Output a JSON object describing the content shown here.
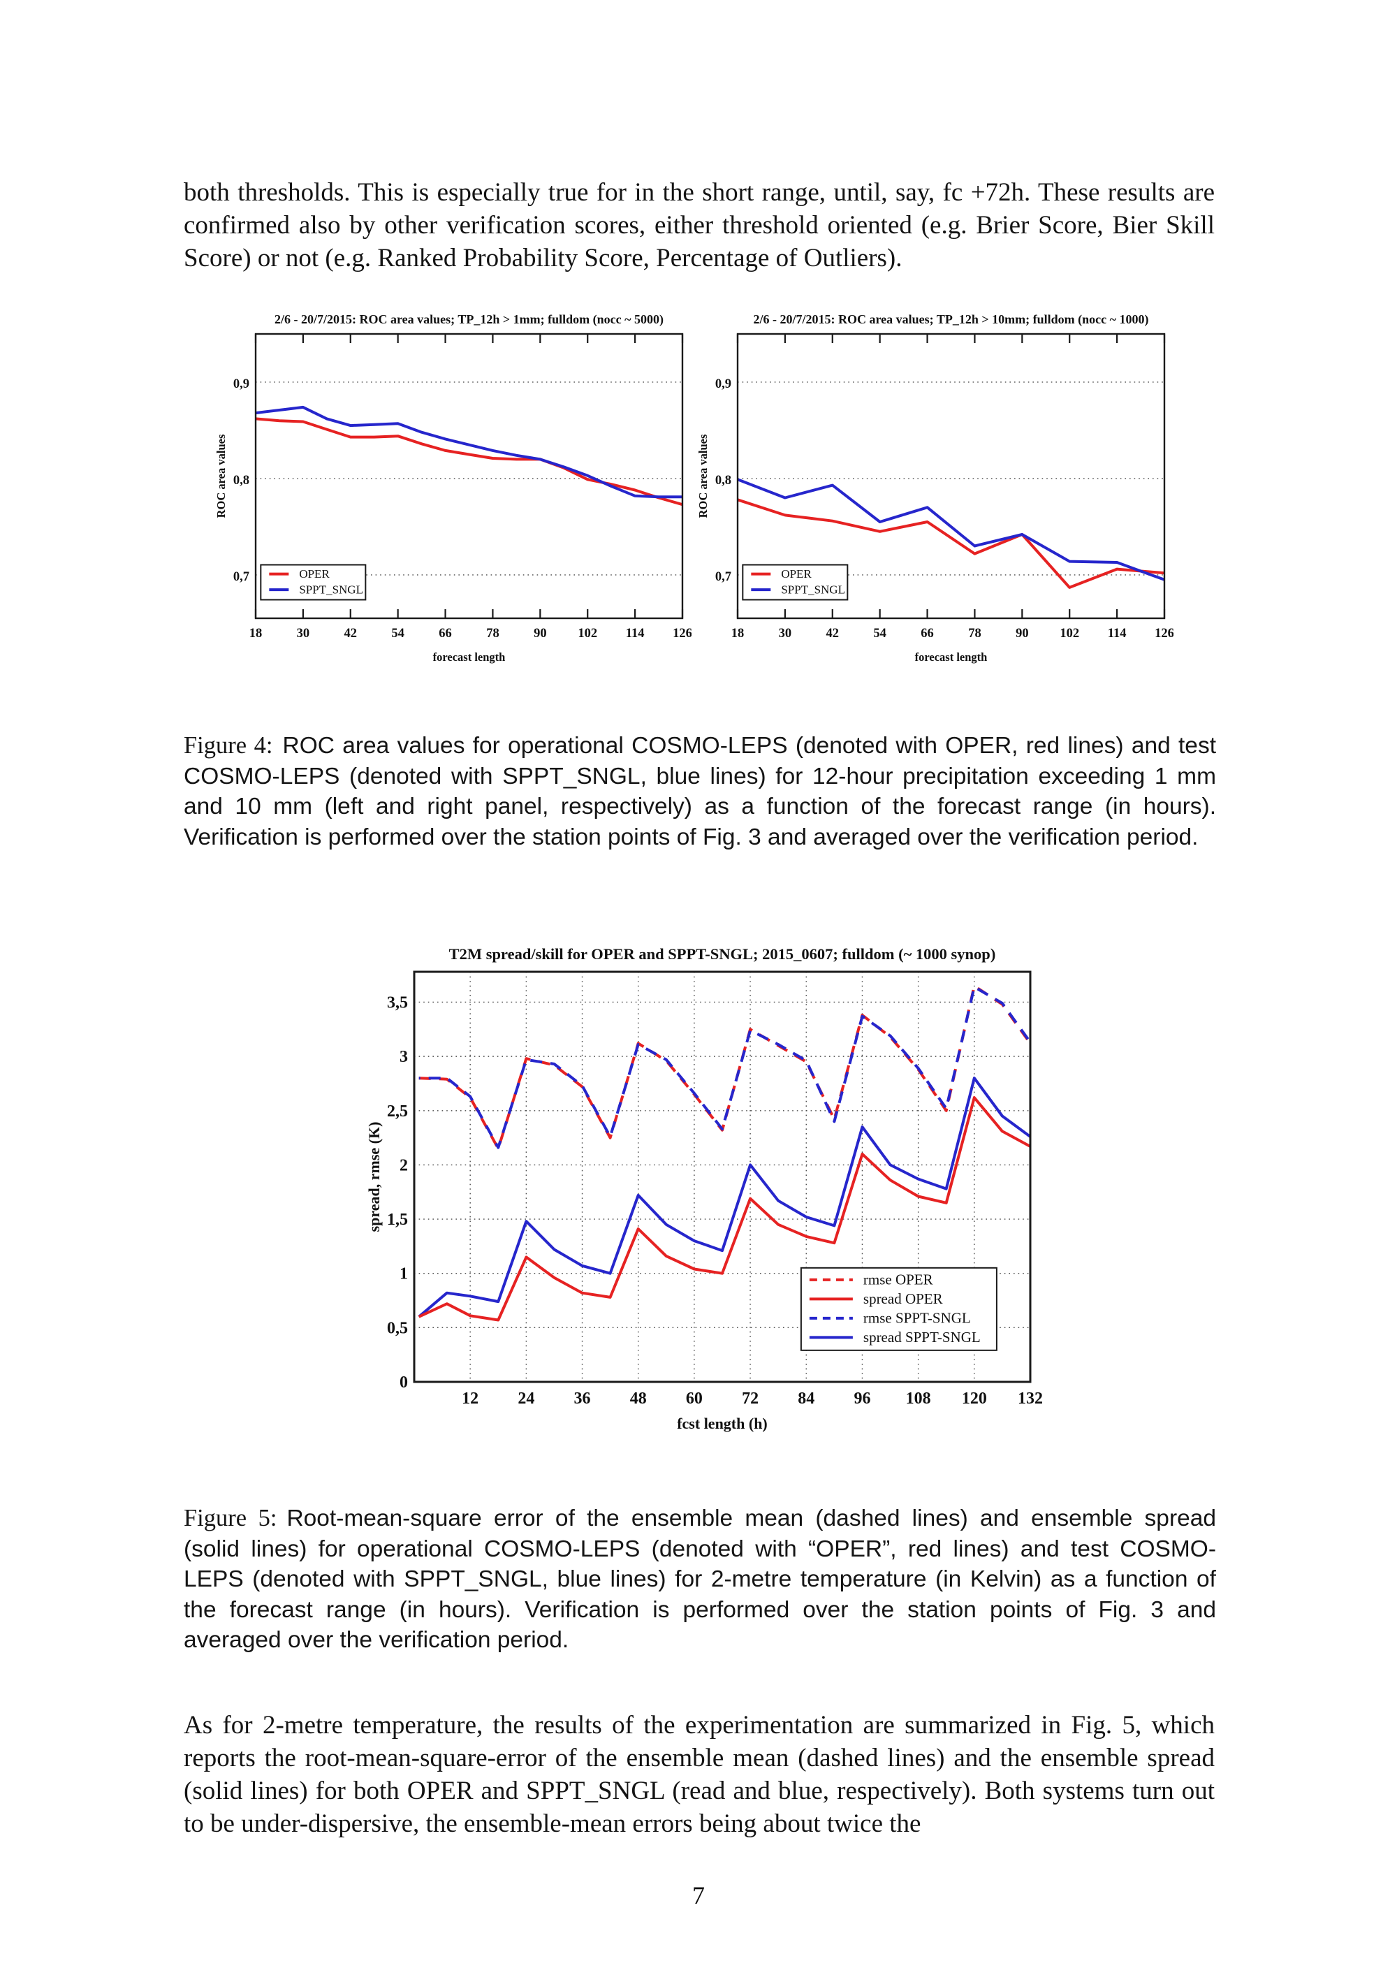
{
  "page": {
    "paragraph_top": "both thresholds.  This is especially true for in the short range, until, say, fc +72h.  These results are confirmed also by other verification scores, either threshold oriented (e.g. Brier Score, Bier Skill Score) or not (e.g. Ranked Probability Score, Percentage of Outliers).",
    "figure4": {
      "label": "Figure 4:",
      "caption": "ROC area values for operational COSMO-LEPS (denoted with OPER, red lines) and test COSMO-LEPS (denoted with SPPT_SNGL, blue lines) for 12-hour precipitation exceeding 1 mm and 10 mm (left and right panel, respectively) as a function of the forecast range (in hours).  Verification is performed over the station points of Fig.  3 and averaged over the verification period."
    },
    "figure5": {
      "label": "Figure 5:",
      "caption": "Root-mean-square error of the ensemble mean (dashed lines) and ensemble spread (solid lines) for operational COSMO-LEPS (denoted with “OPER”, red lines) and test COSMO-LEPS (denoted with SPPT_SNGL, blue lines) for 2-metre temperature (in Kelvin) as a function of the forecast range (in hours).  Verification is performed over the station points of Fig.  3 and averaged over the verification period."
    },
    "paragraph_bottom": "As for 2-metre temperature, the results of the experimentation are summarized in Fig.  5, which reports the root-mean-square-error of the ensemble mean (dashed lines) and the ensemble spread (solid lines) for both OPER and SPPT_SNGL (read and blue, respectively).  Both systems turn out to be under-dispersive, the ensemble-mean errors being about twice the",
    "page_number": "7"
  },
  "colors": {
    "oper_red": "#e62222",
    "sppt_blue": "#2626cc"
  },
  "chart_data": [
    {
      "type": "line",
      "title": "2/6 - 20/7/2015: ROC area values; TP_12h > 1mm; fulldom (nocc ~ 5000)",
      "xlabel": "forecast length",
      "ylabel": "ROC area values",
      "xlim": [
        18,
        126
      ],
      "ylim": [
        0.655,
        0.95
      ],
      "xticks": [
        18,
        30,
        42,
        54,
        66,
        78,
        90,
        102,
        114,
        126
      ],
      "xtick_labels": [
        "18",
        "30",
        "42",
        "54",
        "66",
        "78",
        "90",
        "102",
        "114",
        "126"
      ],
      "ytick_vals": [
        0.7,
        0.8,
        0.9
      ],
      "ytick_labels": [
        "0,7",
        "0,8",
        "0,9"
      ],
      "grid": "h",
      "ticks": "x",
      "legend_pos": "bottom-left",
      "legend": [
        {
          "label": "OPER",
          "color": "#e62222",
          "dash": "solid"
        },
        {
          "label": "SPPT_SNGL",
          "color": "#2626cc",
          "dash": "solid"
        }
      ],
      "series": [
        {
          "name": "OPER",
          "color": "#e62222",
          "dash": "solid",
          "x": [
            18,
            24,
            30,
            36,
            42,
            48,
            54,
            60,
            66,
            72,
            78,
            84,
            90,
            96,
            102,
            108,
            114,
            120,
            126
          ],
          "y": [
            0.862,
            0.86,
            0.859,
            0.851,
            0.843,
            0.843,
            0.844,
            0.836,
            0.829,
            0.825,
            0.821,
            0.82,
            0.82,
            0.811,
            0.799,
            0.794,
            0.788,
            0.78,
            0.773
          ]
        },
        {
          "name": "SPPT_SNGL",
          "color": "#2626cc",
          "dash": "solid",
          "x": [
            18,
            24,
            30,
            36,
            42,
            48,
            54,
            60,
            66,
            72,
            78,
            84,
            90,
            96,
            102,
            108,
            114,
            120,
            126
          ],
          "y": [
            0.868,
            0.871,
            0.874,
            0.862,
            0.855,
            0.856,
            0.857,
            0.848,
            0.841,
            0.835,
            0.829,
            0.824,
            0.82,
            0.812,
            0.803,
            0.792,
            0.782,
            0.781,
            0.781
          ]
        }
      ]
    },
    {
      "type": "line",
      "title": "2/6 - 20/7/2015: ROC area values; TP_12h > 10mm; fulldom (nocc ~ 1000)",
      "xlabel": "forecast length",
      "ylabel": "ROC area values",
      "xlim": [
        18,
        126
      ],
      "ylim": [
        0.655,
        0.95
      ],
      "xticks": [
        18,
        30,
        42,
        54,
        66,
        78,
        90,
        102,
        114,
        126
      ],
      "xtick_labels": [
        "18",
        "30",
        "42",
        "54",
        "66",
        "78",
        "90",
        "102",
        "114",
        "126"
      ],
      "ytick_vals": [
        0.7,
        0.8,
        0.9
      ],
      "ytick_labels": [
        "0,7",
        "0,8",
        "0,9"
      ],
      "grid": "h",
      "ticks": "x",
      "legend_pos": "bottom-left",
      "legend": [
        {
          "label": "OPER",
          "color": "#e62222",
          "dash": "solid"
        },
        {
          "label": "SPPT_SNGL",
          "color": "#2626cc",
          "dash": "solid"
        }
      ],
      "series": [
        {
          "name": "OPER",
          "color": "#e62222",
          "dash": "solid",
          "x": [
            18,
            30,
            36,
            42,
            54,
            66,
            78,
            90,
            102,
            114,
            126
          ],
          "y": [
            0.778,
            0.762,
            0.759,
            0.756,
            0.745,
            0.755,
            0.722,
            0.742,
            0.687,
            0.706,
            0.702
          ]
        },
        {
          "name": "SPPT_SNGL",
          "color": "#2626cc",
          "dash": "solid",
          "x": [
            18,
            30,
            42,
            54,
            66,
            78,
            90,
            102,
            114,
            126
          ],
          "y": [
            0.799,
            0.78,
            0.793,
            0.755,
            0.77,
            0.73,
            0.742,
            0.714,
            0.713,
            0.695
          ]
        }
      ]
    },
    {
      "type": "line",
      "title": "T2M spread/skill for OPER and SPPT-SNGL; 2015_0607; fulldom (~ 1000 synop)",
      "xlabel": "fcst length (h)",
      "ylabel": "spread, rmse (K)",
      "xlim": [
        0,
        132
      ],
      "ylim": [
        0,
        3.78
      ],
      "xticks": [
        12,
        24,
        36,
        48,
        60,
        72,
        84,
        96,
        108,
        120,
        132
      ],
      "xtick_labels": [
        "12",
        "24",
        "36",
        "48",
        "60",
        "72",
        "84",
        "96",
        "108",
        "120",
        "132"
      ],
      "ytick_vals": [
        0,
        0.5,
        1,
        1.5,
        2,
        2.5,
        3,
        3.5
      ],
      "ytick_labels": [
        "0",
        "0,5",
        "1",
        "1,5",
        "2",
        "2,5",
        "3",
        "3,5"
      ],
      "grid": "hv",
      "ticks": "",
      "legend_pos": "right-lower",
      "legend": [
        {
          "label": "rmse OPER",
          "color": "#e62222",
          "dash": "dashed"
        },
        {
          "label": "spread OPER",
          "color": "#e62222",
          "dash": "solid"
        },
        {
          "label": "rmse SPPT-SNGL",
          "color": "#2626cc",
          "dash": "dashed"
        },
        {
          "label": "spread SPPT-SNGL",
          "color": "#2626cc",
          "dash": "solid"
        }
      ],
      "series": [
        {
          "name": "rmse OPER",
          "color": "#e62222",
          "dash": "dashed",
          "x": [
            1,
            7,
            12,
            18,
            24,
            30,
            36,
            42,
            48,
            54,
            60,
            66,
            72,
            78,
            84,
            90,
            96,
            102,
            108,
            114,
            120,
            126,
            132
          ],
          "y": [
            2.8,
            2.79,
            2.62,
            2.15,
            2.98,
            2.92,
            2.72,
            2.25,
            3.12,
            2.96,
            2.65,
            2.32,
            3.25,
            3.1,
            2.95,
            2.42,
            3.38,
            3.18,
            2.88,
            2.5,
            3.65,
            3.48,
            3.12
          ]
        },
        {
          "name": "rmse SPPT-SNGL",
          "color": "#2626cc",
          "dash": "dashed",
          "offset": 15,
          "x": [
            1,
            7,
            12,
            18,
            24,
            30,
            36,
            42,
            48,
            54,
            60,
            66,
            72,
            78,
            84,
            90,
            96,
            102,
            108,
            114,
            120,
            126,
            132
          ],
          "y": [
            2.8,
            2.8,
            2.63,
            2.16,
            2.97,
            2.93,
            2.73,
            2.26,
            3.11,
            2.97,
            2.66,
            2.33,
            3.24,
            3.11,
            2.96,
            2.4,
            3.37,
            3.19,
            2.89,
            2.52,
            3.64,
            3.49,
            3.13
          ]
        },
        {
          "name": "spread SPPT-SNGL",
          "color": "#2626cc",
          "dash": "solid",
          "x": [
            1,
            7,
            12,
            18,
            24,
            30,
            36,
            42,
            48,
            54,
            60,
            66,
            72,
            78,
            84,
            90,
            96,
            102,
            108,
            114,
            120,
            126,
            132
          ],
          "y": [
            0.6,
            0.82,
            0.79,
            0.74,
            1.48,
            1.22,
            1.07,
            1.0,
            1.72,
            1.45,
            1.3,
            1.21,
            2.0,
            1.67,
            1.52,
            1.44,
            2.35,
            2.0,
            1.87,
            1.78,
            2.8,
            2.45,
            2.26
          ]
        },
        {
          "name": "spread OPER",
          "color": "#e62222",
          "dash": "solid",
          "x": [
            1,
            7,
            12,
            18,
            24,
            30,
            36,
            42,
            48,
            54,
            60,
            66,
            72,
            78,
            84,
            90,
            96,
            102,
            108,
            114,
            120,
            126,
            132
          ],
          "y": [
            0.6,
            0.72,
            0.61,
            0.57,
            1.15,
            0.96,
            0.82,
            0.78,
            1.41,
            1.16,
            1.04,
            1.0,
            1.69,
            1.45,
            1.34,
            1.28,
            2.1,
            1.86,
            1.71,
            1.65,
            2.62,
            2.31,
            2.17
          ]
        }
      ]
    }
  ]
}
